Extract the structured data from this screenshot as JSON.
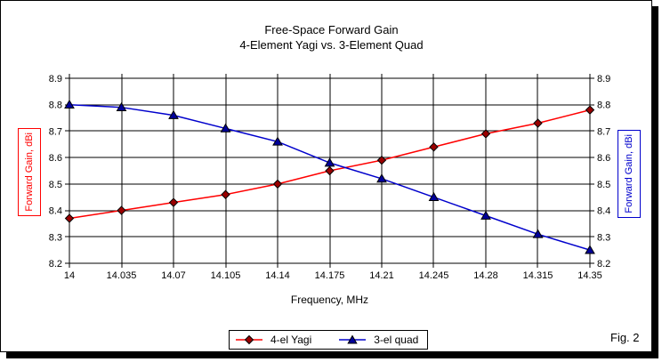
{
  "figure": {
    "title_line1": "Free-Space Forward Gain",
    "title_line2": "4-Element Yagi vs. 3-Element Quad",
    "fig_label": "Fig. 2"
  },
  "chart_data": {
    "type": "line",
    "x": [
      14,
      14.035,
      14.07,
      14.105,
      14.14,
      14.175,
      14.21,
      14.245,
      14.28,
      14.315,
      14.35
    ],
    "x_tick_labels": [
      "14",
      "14.035",
      "14.07",
      "14.105",
      "14.14",
      "14.175",
      "14.21",
      "14.245",
      "14.28",
      "14.315",
      "14.35"
    ],
    "xlim": [
      14,
      14.35
    ],
    "ylim": [
      8.2,
      8.9
    ],
    "y_tick_step": 0.1,
    "y_tick_labels": [
      "8.9",
      "8.8",
      "8.7",
      "8.6",
      "8.5",
      "8.4",
      "8.3",
      "8.2"
    ],
    "xlabel": "Frequency, MHz",
    "ylabel_left": "Forward Gain,  dBi",
    "ylabel_right": "Forward Gain,  dBi",
    "grid": true,
    "legend_position": "bottom",
    "series": [
      {
        "name": "4-el Yagi",
        "marker": "diamond",
        "line_color": "#ff0000",
        "marker_color": "#990000",
        "values": [
          8.37,
          8.4,
          8.43,
          8.46,
          8.5,
          8.55,
          8.59,
          8.64,
          8.69,
          8.73,
          8.78
        ]
      },
      {
        "name": "3-el quad",
        "marker": "triangle",
        "line_color": "#0000cc",
        "marker_color": "#000099",
        "values": [
          8.8,
          8.79,
          8.76,
          8.71,
          8.66,
          8.58,
          8.52,
          8.45,
          8.38,
          8.31,
          8.25
        ]
      }
    ]
  }
}
